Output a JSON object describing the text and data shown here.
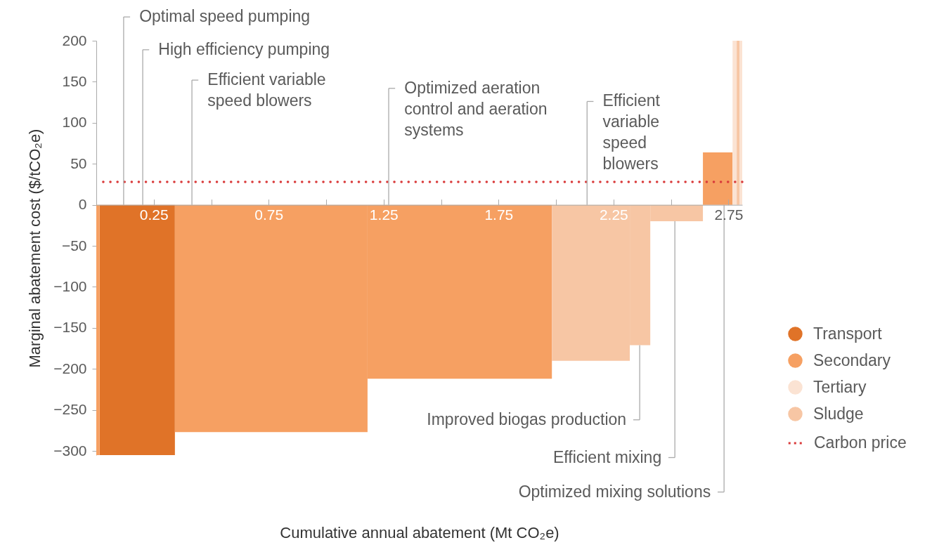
{
  "chart_data": {
    "type": "histogram",
    "xlabel": "Cumulative annual abatement (Mt CO₂e)",
    "ylabel": "Marginal abatement cost ($/tCO₂e)",
    "bins": [
      0,
      0.014,
      0.342,
      1.18,
      1.982,
      2.321,
      2.41,
      2.639,
      2.768,
      2.786,
      2.798,
      2.81
    ],
    "series": [
      {
        "name": "Transport",
        "color": "#e07328",
        "values": [
          null,
          -305,
          null,
          null,
          null,
          null,
          null,
          null,
          null,
          null,
          null
        ]
      },
      {
        "name": "Secondary",
        "color": "#f6a062",
        "values": [
          -305,
          null,
          -277,
          -212,
          null,
          null,
          null,
          64,
          null,
          null,
          null
        ]
      },
      {
        "name": "Tertiary",
        "color": "#fbe3d3",
        "values": [
          null,
          null,
          null,
          null,
          null,
          null,
          null,
          null,
          200,
          null,
          200
        ]
      },
      {
        "name": "Sludge",
        "color": "#f7c6a4",
        "values": [
          null,
          null,
          null,
          null,
          -190,
          -171,
          -20,
          null,
          null,
          200,
          null
        ]
      }
    ],
    "xlim": [
      0,
      2.81
    ],
    "xticks": [
      0.25,
      {
        "value": 0.5,
        "label": null
      },
      0.75,
      {
        "value": 1.0,
        "label": null
      },
      1.25,
      {
        "value": 1.5,
        "label": null
      },
      1.75,
      {
        "value": 2.0,
        "label": null
      },
      2.25,
      {
        "value": 2.5,
        "label": null
      },
      2.75
    ],
    "ylim": [
      -305,
      200
    ],
    "yticks": [
      -300,
      -250,
      -200,
      -150,
      -100,
      -50,
      0,
      50,
      100,
      150,
      200
    ],
    "ref_lines": [
      {
        "axis": "y",
        "value": 28,
        "label": "Carbon price",
        "color": "#d93a3a",
        "line_style": "dotted"
      }
    ],
    "annotations": [
      {
        "text": "Optimal speed pumping",
        "x": 0.119,
        "y": 0
      },
      {
        "text": "High efficiency pumping",
        "x": 0.202,
        "y": 0
      },
      {
        "text": "Efficient variable speed blowers",
        "x": 0.416,
        "y": 0
      },
      {
        "text": "Optimized aeration control and aeration systems",
        "x": 1.272,
        "y": 0
      },
      {
        "text": "Efficient variable speed blowers",
        "x": 2.135,
        "y": 0
      },
      {
        "text": "Improved biogas production",
        "x": 2.364,
        "y": -171
      },
      {
        "text": "Efficient mixing",
        "x": 2.517,
        "y": -20
      },
      {
        "text": "Optimized mixing solutions",
        "x": 2.731,
        "y": 0
      }
    ],
    "legend": "right"
  }
}
